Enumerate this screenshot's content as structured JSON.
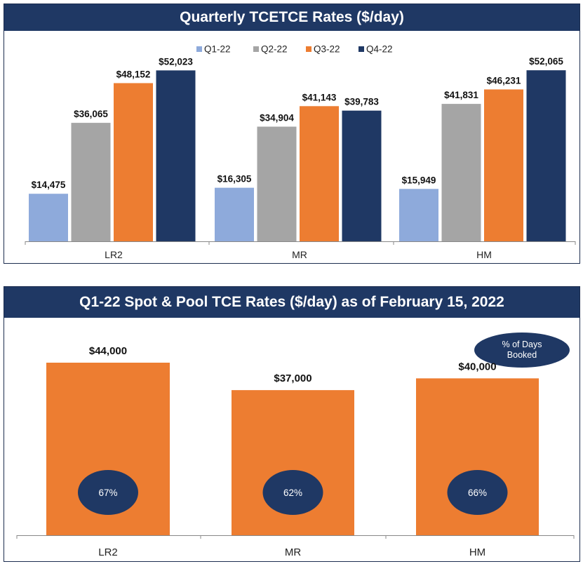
{
  "colors": {
    "header_bg": "#1f3864",
    "q1": "#8eaadb",
    "q2": "#a5a5a5",
    "q3": "#ed7d31",
    "q4": "#1f3864",
    "spot_bar": "#ed7d31",
    "ellipse": "#1f3864"
  },
  "chart_data": [
    {
      "type": "bar",
      "title": "Quarterly TCETCE Rates ($/day)",
      "categories": [
        "LR2",
        "MR",
        "HM"
      ],
      "series": [
        {
          "name": "Q1-22",
          "values": [
            14475,
            16305,
            15949
          ],
          "labels": [
            "$14,475",
            "$16,305",
            "$15,949"
          ]
        },
        {
          "name": "Q2-22",
          "values": [
            36065,
            34904,
            41831
          ],
          "labels": [
            "$36,065",
            "$34,904",
            "$41,831"
          ]
        },
        {
          "name": "Q3-22",
          "values": [
            48152,
            41143,
            46231
          ],
          "labels": [
            "$48,152",
            "$41,143",
            "$46,231"
          ]
        },
        {
          "name": "Q4-22",
          "values": [
            52023,
            39783,
            52065
          ],
          "labels": [
            "$52,023",
            "$39,783",
            "$52,065"
          ]
        }
      ],
      "legend": "top-center",
      "ylim": [
        0,
        60000
      ],
      "grid": false
    },
    {
      "type": "bar",
      "title": "Q1-22 Spot & Pool TCE Rates ($/day) as of February 15, 2022",
      "categories": [
        "LR2",
        "MR",
        "HM"
      ],
      "values": [
        44000,
        37000,
        40000
      ],
      "labels": [
        "$44,000",
        "$37,000",
        "$40,000"
      ],
      "pct_booked": [
        "67%",
        "62%",
        "66%"
      ],
      "legend_bubble": "% of Days Booked",
      "ylim": [
        0,
        53000
      ],
      "grid": false
    }
  ]
}
